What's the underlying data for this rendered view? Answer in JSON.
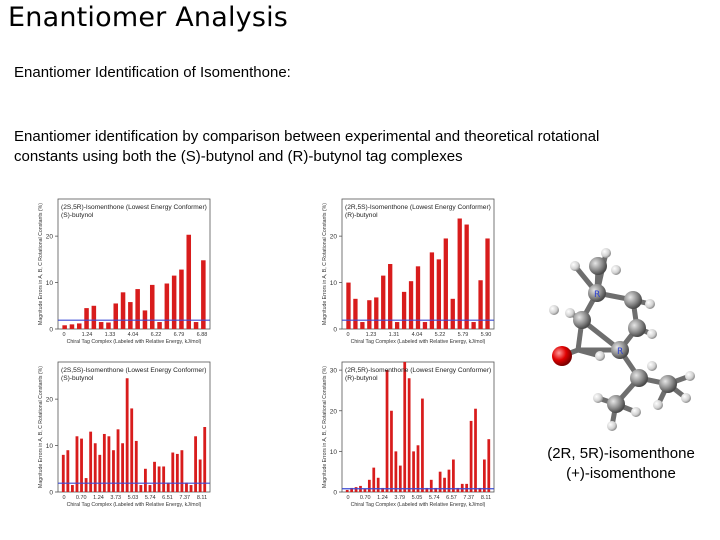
{
  "slide": {
    "title": "Enantiomer Analysis",
    "subtitle": "Enantiomer Identification of Isomenthone:",
    "description_line1": "Enantiomer identification by comparison between experimental and theoretical rotational",
    "description_line2": "constants using both the (S)-butynol and (R)-butynol tag complexes"
  },
  "molecule": {
    "caption_line1": "(2R, 5R)-isomenthone",
    "caption_line2": "(+)-isomenthone",
    "atom_labels": [
      "R",
      "R"
    ]
  },
  "colors": {
    "bar": "#d81c1c",
    "threshold": "#3b4bd6",
    "oxygen": "#e00000",
    "carbon": "#8c8c8c",
    "hydrogen": "#d8d8d8"
  },
  "chart_data": [
    {
      "type": "bar",
      "legend_line1": "(2S,5R)-Isomenthone (Lowest Energy Conformer)",
      "legend_line2": "(S)-butynol",
      "ylabel": "Magnitude Errors in A, B, C Rotational Constants (%)",
      "xlabel": "Chiral Tag Complex (Labeled with Relative Energy, kJ/mol)",
      "xticks": [
        "0",
        "1.24",
        "1.33",
        "4.04",
        "6.22",
        "6.79",
        "6.88"
      ],
      "ylim": [
        0,
        28
      ],
      "yticks": [
        0,
        10,
        20
      ],
      "threshold": 1.9,
      "values": [
        0.8,
        1.0,
        1.2,
        4.5,
        5.0,
        1.5,
        1.4,
        5.5,
        7.9,
        5.8,
        8.6,
        4.0,
        9.5,
        1.5,
        9.8,
        11.5,
        12.8,
        20.3,
        1.5,
        14.8
      ]
    },
    {
      "type": "bar",
      "legend_line1": "(2R,5S)-Isomenthone (Lowest Energy Conformer)",
      "legend_line2": "(R)-butynol",
      "ylabel": "Magnitude Errors in A, B, C Rotational Constants (%)",
      "xlabel": "Chiral Tag Complex (Labeled with Relative Energy, kJ/mol)",
      "xticks": [
        "0",
        "1.23",
        "1.31",
        "4.04",
        "5.22",
        "5.79",
        "5.90"
      ],
      "ylim": [
        0,
        28
      ],
      "yticks": [
        0,
        10,
        20
      ],
      "threshold": 1.9,
      "values": [
        10.0,
        6.5,
        1.5,
        6.2,
        6.8,
        11.5,
        14.0,
        1.5,
        8.0,
        10.3,
        13.5,
        1.5,
        16.5,
        15.0,
        19.5,
        6.5,
        23.8,
        22.5,
        1.5,
        10.5,
        19.5
      ]
    },
    {
      "type": "bar",
      "legend_line1": "(2S,5S)-Isomenthone (Lowest Energy Conformer)",
      "legend_line2": "(S)-butynol",
      "ylabel": "Magnitude Errors in A, B, C Rotational Constants (%)",
      "xlabel": "Chiral Tag Complex (Labeled with Relative Energy, kJ/mol)",
      "xticks": [
        "0",
        "0.70",
        "1.24",
        "3.73",
        "5.03",
        "5.74",
        "6.51",
        "7.37",
        "8.11"
      ],
      "ylim": [
        0,
        28
      ],
      "yticks": [
        0,
        10,
        20
      ],
      "threshold": 1.9,
      "values": [
        8.0,
        9.0,
        1.5,
        12.0,
        11.5,
        3.0,
        13.0,
        10.5,
        8.0,
        12.5,
        12.0,
        9.0,
        13.5,
        10.5,
        24.5,
        18.0,
        11.0,
        1.5,
        5.0,
        1.5,
        6.5,
        5.5,
        5.5,
        2.0,
        8.5,
        8.2,
        9.0,
        2.0,
        1.5,
        12.0,
        7.0,
        14.0
      ]
    },
    {
      "type": "bar",
      "legend_line1": "(2R,5R)-Isomenthone (Lowest Energy Conformer)",
      "legend_line2": "(R)-butynol",
      "ylabel": "Magnitude Errors in A, B, C Rotational Constants (%)",
      "xlabel": "Chiral Tag Complex (Labeled with Relative Energy, kJ/mol)",
      "xticks": [
        "0",
        "0.70",
        "1.24",
        "3.79",
        "5.05",
        "5.74",
        "6.57",
        "7.37",
        "8.11"
      ],
      "ylim": [
        0,
        32
      ],
      "yticks": [
        0,
        10,
        20,
        30
      ],
      "threshold": 0.8,
      "values": [
        0.5,
        1.0,
        1.2,
        1.5,
        0.8,
        3.0,
        6.0,
        3.5,
        1.0,
        30.0,
        20.0,
        10.0,
        6.5,
        32.0,
        28.0,
        10.0,
        11.5,
        23.0,
        1.0,
        3.0,
        1.0,
        5.0,
        3.5,
        5.5,
        8.0,
        1.0,
        2.0,
        2.0,
        17.5,
        20.5,
        1.0,
        8.0,
        13.0
      ]
    }
  ]
}
